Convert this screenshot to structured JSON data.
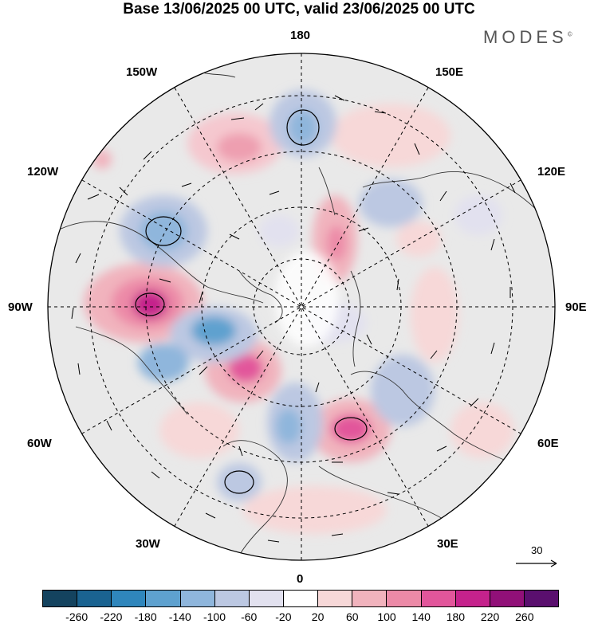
{
  "title": "Base 13/06/2025 00 UTC, valid 23/06/2025 00 UTC",
  "brand": "MODES",
  "brand_mark": "©",
  "map": {
    "projection": "north-polar-stereographic",
    "longitude_labels": {
      "top": "180",
      "top_left": "150W",
      "top_right": "150E",
      "upper_left": "120W",
      "upper_right": "120E",
      "left": "90W",
      "right": "90E",
      "lower_left": "60W",
      "lower_right": "60E",
      "bottom_left": "30W",
      "bottom_right": "30E",
      "bottom": "0"
    },
    "wind_scale_label": "30"
  },
  "colorbar": {
    "colors": [
      "#14435f",
      "#1a6391",
      "#2f86bc",
      "#5ea1cf",
      "#8fb6dc",
      "#bcc8e2",
      "#e2e1ef",
      "#ffffff",
      "#f7d8d8",
      "#f1b3bd",
      "#ec8aa7",
      "#e2569b",
      "#c5228c",
      "#911078",
      "#5a0f6e"
    ],
    "ticks": [
      "-260",
      "-220",
      "-180",
      "-140",
      "-100",
      "-60",
      "-20",
      "20",
      "60",
      "100",
      "140",
      "180",
      "220",
      "260"
    ]
  }
}
